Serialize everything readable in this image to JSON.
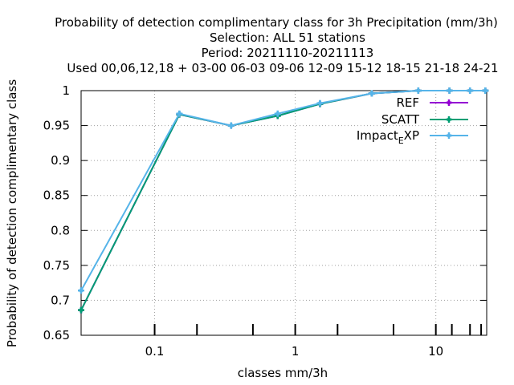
{
  "chart_data": {
    "type": "line",
    "title_lines": [
      "Probability of detection complimentary class  for 3h Precipitation (mm/3h)",
      "Selection: ALL     51 stations",
      "Period: 20211110-20211113",
      "Used  00,06,12,18  + 03-00 06-03 09-06 12-09 15-12 18-15 21-18 24-21"
    ],
    "xlabel": "classes mm/3h",
    "ylabel": "Probability of detection complimentary class",
    "x_scale": "log",
    "xlim": [
      0.03,
      23
    ],
    "ylim": [
      0.65,
      1.0
    ],
    "x_tick_labels": [
      {
        "value": 0.1,
        "label": "0.1"
      },
      {
        "value": 1,
        "label": "1"
      },
      {
        "value": 10,
        "label": "10"
      }
    ],
    "x_minor_ticks": [
      0.2,
      0.5,
      2,
      5,
      13,
      17.5,
      21
    ],
    "y_ticks": [
      {
        "value": 0.65,
        "label": "0.65"
      },
      {
        "value": 0.7,
        "label": "0.7"
      },
      {
        "value": 0.75,
        "label": "0.75"
      },
      {
        "value": 0.8,
        "label": "0.8"
      },
      {
        "value": 0.85,
        "label": "0.85"
      },
      {
        "value": 0.9,
        "label": "0.9"
      },
      {
        "value": 0.95,
        "label": "0.95"
      },
      {
        "value": 1.0,
        "label": "1"
      }
    ],
    "grid": true,
    "legend_position": "top-right",
    "series": [
      {
        "name": "REF",
        "color": "#9400d3",
        "marker": "plus",
        "x": [
          0.03,
          0.15,
          0.35,
          0.75,
          1.5,
          3.5,
          7.5,
          12.5,
          17.5,
          22.5
        ],
        "y": [
          0.686,
          0.966,
          0.95,
          0.964,
          0.981,
          0.996,
          1.0,
          1.0,
          1.0,
          1.0
        ]
      },
      {
        "name": "SCATT",
        "color": "#009e73",
        "marker": "plus",
        "x": [
          0.03,
          0.15,
          0.35,
          0.75,
          1.5,
          3.5,
          7.5,
          12.5,
          17.5,
          22.5
        ],
        "y": [
          0.686,
          0.966,
          0.95,
          0.964,
          0.981,
          0.996,
          1.0,
          1.0,
          1.0,
          1.0
        ]
      },
      {
        "name_main": "Impact",
        "name_sub": "E",
        "name_tail": "XP",
        "color": "#56b4e9",
        "marker": "plus",
        "x": [
          0.03,
          0.15,
          0.35,
          0.75,
          1.5,
          3.5,
          7.5,
          12.5,
          17.5,
          22.5
        ],
        "y": [
          0.714,
          0.967,
          0.95,
          0.967,
          0.982,
          0.996,
          1.0,
          1.0,
          1.0,
          1.0
        ]
      }
    ]
  }
}
